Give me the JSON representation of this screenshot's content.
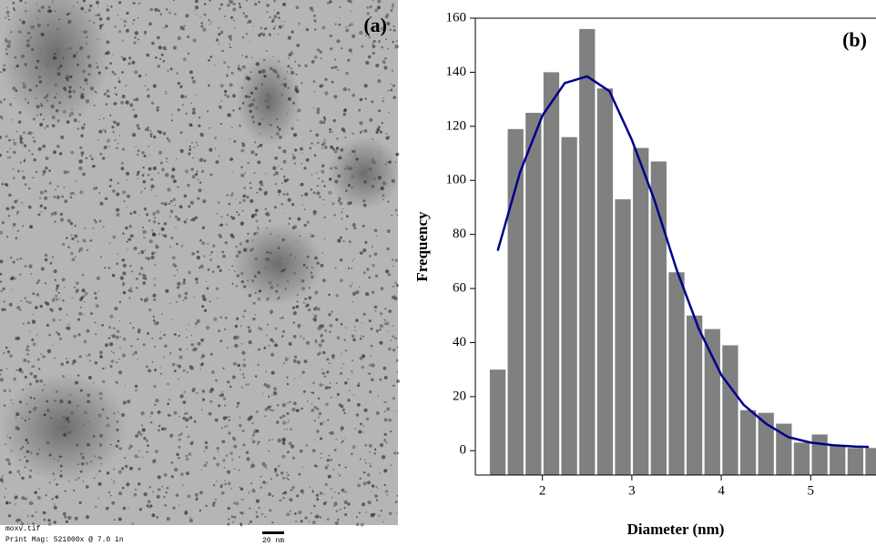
{
  "image_panel": {
    "label": "(a)",
    "filename": "moxv.tif",
    "magnification": "Print Mag: 521000x @ 7.0 in",
    "scale_bar": "20 nm"
  },
  "chart_data": {
    "type": "histogram",
    "panel_label": "(b)",
    "x_label": "Diameter (nm)",
    "y_label": "Frequency",
    "bins": [
      1.4,
      1.6,
      1.8,
      2.0,
      2.2,
      2.4,
      2.6,
      2.8,
      3.0,
      3.2,
      3.4,
      3.6,
      3.8,
      4.0,
      4.2,
      4.4,
      4.6,
      4.8,
      5.0,
      5.2,
      5.4,
      5.6,
      5.8
    ],
    "counts": [
      30,
      119,
      125,
      140,
      116,
      156,
      134,
      93,
      112,
      107,
      66,
      50,
      45,
      39,
      15,
      14,
      10,
      3,
      6,
      2,
      1,
      1
    ],
    "color": "#808080",
    "xlim": [
      1.25,
      5.73
    ],
    "ylim": [
      -9,
      160
    ],
    "xticks": [
      2,
      3,
      4,
      5
    ],
    "yticks": [
      0,
      20,
      40,
      60,
      80,
      100,
      120,
      140,
      160
    ],
    "fit": {
      "color": "#00008b",
      "x": [
        1.5,
        1.75,
        2.0,
        2.25,
        2.5,
        2.75,
        3.0,
        3.25,
        3.5,
        3.75,
        4.0,
        4.25,
        4.5,
        4.75,
        5.0,
        5.25,
        5.5,
        5.65
      ],
      "y": [
        74,
        103,
        124,
        136,
        138.5,
        133,
        115,
        93,
        67,
        45,
        28,
        17,
        10,
        5,
        3,
        2,
        1.5,
        1.4
      ]
    }
  }
}
